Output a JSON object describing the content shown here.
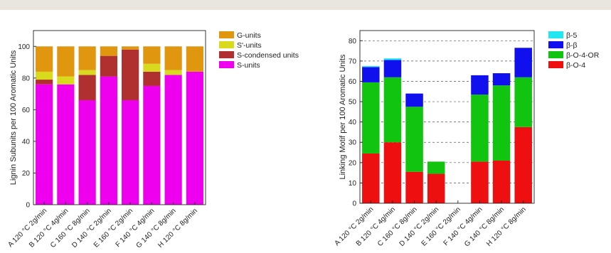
{
  "colors": {
    "left": {
      "G-units": "#e0960f",
      "S'-units": "#d9d91e",
      "S-condensed units": "#b03030",
      "S-units": "#ee00ee"
    },
    "right": {
      "β-5": "#22e6f0",
      "β-β": "#1010ee",
      "β-O-4-OR": "#10c410",
      "β-O-4": "#ee1010"
    }
  },
  "chart_data": [
    {
      "type": "bar",
      "stacked": true,
      "ylabel": "Lignin Subunits per 100 Aromatic Units",
      "xlabel": "",
      "ylim": [
        0,
        110
      ],
      "yticks": [
        0,
        20,
        40,
        60,
        80,
        100
      ],
      "grid": false,
      "legend_position": "right",
      "categories": [
        "A 120 °C 2g/min",
        "B 120 °C 4g/min",
        "C 160 °C 8g/min",
        "D 140 °C 2g/min",
        "E 160 °C 2g/min",
        "F 140 °C 4g/min",
        "G 140 °C 8g/min",
        "H 120 °C 8g/min"
      ],
      "series": [
        {
          "name": "S-units",
          "values": [
            76,
            76,
            66,
            81,
            66,
            75,
            82,
            84
          ]
        },
        {
          "name": "S-condensed units",
          "values": [
            3,
            0,
            16,
            13,
            32,
            9,
            0,
            0
          ]
        },
        {
          "name": "S'-units",
          "values": [
            5,
            5,
            3,
            0,
            0,
            5,
            3,
            0
          ]
        },
        {
          "name": "G-units",
          "values": [
            16,
            19,
            15,
            6,
            2,
            11,
            15,
            16
          ]
        }
      ],
      "legend_order": [
        "G-units",
        "S'-units",
        "S-condensed units",
        "S-units"
      ]
    },
    {
      "type": "bar",
      "stacked": true,
      "ylabel": "Linking Motif per 100 Aromatic Units",
      "xlabel": "",
      "ylim": [
        0,
        85
      ],
      "yticks": [
        0,
        10,
        20,
        30,
        40,
        50,
        60,
        70,
        80
      ],
      "grid": true,
      "legend_position": "top-right",
      "categories": [
        "A 120 °C 2g/min",
        "B 120 °C 4g/min",
        "C 160 °C 8g/min",
        "D 140 °C 2g/min",
        "E 160 °C 2g/min",
        "F 140 °C 4g/min",
        "G 140 °C 8g/min",
        "H 120 °C 8g/min"
      ],
      "series": [
        {
          "name": "β-O-4",
          "values": [
            24.5,
            30,
            15.5,
            14.5,
            0,
            20.5,
            21,
            37.5
          ]
        },
        {
          "name": "β-O-4-OR",
          "values": [
            35,
            32,
            32,
            6,
            0,
            33,
            37,
            24.5
          ]
        },
        {
          "name": "β-β",
          "values": [
            7.5,
            8.5,
            6.5,
            0,
            0,
            9.5,
            6,
            14.5
          ]
        },
        {
          "name": "β-5",
          "values": [
            0.5,
            0.8,
            0,
            0,
            0,
            0,
            0,
            0
          ]
        }
      ],
      "legend_order": [
        "β-5",
        "β-β",
        "β-O-4-OR",
        "β-O-4"
      ]
    }
  ]
}
